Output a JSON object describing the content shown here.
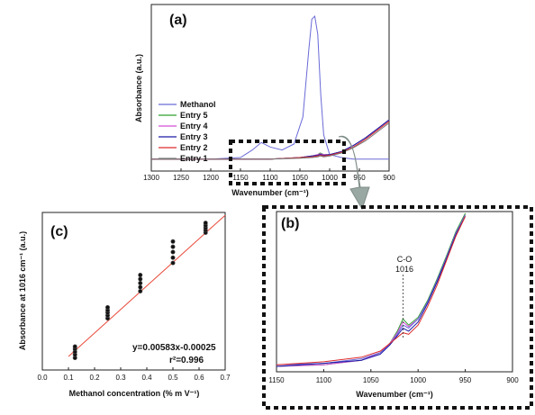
{
  "panels": {
    "a": {
      "label": "(a)",
      "ylabel": "Absorbance (a.u.)",
      "xlabel": "Wavenumber (cm⁻¹)",
      "xticks": [
        "1300",
        "1250",
        "1200",
        "1150",
        "1100",
        "1050",
        "1000",
        "950",
        "900"
      ],
      "legend": [
        "Methanol",
        "Entry 5",
        "Entry 4",
        "Entry 3",
        "Entry 2",
        "Entry 1"
      ]
    },
    "b": {
      "label": "(b)",
      "xlabel": "Wavenumber (cm⁻¹)",
      "xticks": [
        "1150",
        "1100",
        "1050",
        "1000",
        "950",
        "900"
      ],
      "annotation_line1": "C-O",
      "annotation_line2": "1016"
    },
    "c": {
      "label": "(c)",
      "ylabel": "Absorbance at 1016 cm⁻¹ (a.u.)",
      "xlabel": "Methanol concentration (% m V⁻¹)",
      "xticks": [
        "0.0",
        "0.1",
        "0.2",
        "0.3",
        "0.4",
        "0.5",
        "0.6",
        "0.7"
      ],
      "equation": "y=0.00583x-0.00025",
      "r2": "r²=0.996"
    }
  },
  "colors": {
    "methanol": "#6a6ad8",
    "entry5": "#2fa02f",
    "entry4": "#d34fd3",
    "entry3": "#1a1aa8",
    "entry2": "#dd2a2a",
    "entry1": "#777777",
    "fit": "#e84a3a",
    "arrow": "#9aa8a4"
  },
  "chart_data": [
    {
      "type": "line",
      "panel": "a",
      "xlabel": "Wavenumber (cm⁻¹)",
      "ylabel": "Absorbance (a.u.)",
      "xlim": [
        1300,
        900
      ],
      "series": [
        {
          "name": "Methanol",
          "x": [
            1300,
            1200,
            1150,
            1130,
            1115,
            1100,
            1080,
            1060,
            1045,
            1035,
            1030,
            1025,
            1020,
            1015,
            1010,
            1000,
            980,
            960,
            940,
            920,
            900
          ],
          "y": [
            0.02,
            0.02,
            0.03,
            0.08,
            0.13,
            0.1,
            0.08,
            0.12,
            0.3,
            0.75,
            0.95,
            0.97,
            0.85,
            0.45,
            0.18,
            0.05,
            0.03,
            0.02,
            0.02,
            0.02,
            0.02
          ]
        },
        {
          "name": "Entry 5",
          "x": [
            1300,
            1100,
            1050,
            1030,
            1020,
            1016,
            1010,
            1000,
            980,
            960,
            940,
            920,
            900
          ],
          "y": [
            0.02,
            0.02,
            0.03,
            0.04,
            0.05,
            0.06,
            0.05,
            0.05,
            0.07,
            0.11,
            0.16,
            0.22,
            0.28
          ]
        },
        {
          "name": "Entry 4",
          "x": [
            1300,
            1100,
            1050,
            1030,
            1020,
            1016,
            1010,
            1000,
            980,
            960,
            940,
            920,
            900
          ],
          "y": [
            0.02,
            0.02,
            0.03,
            0.04,
            0.05,
            0.055,
            0.05,
            0.05,
            0.07,
            0.11,
            0.16,
            0.22,
            0.28
          ]
        },
        {
          "name": "Entry 3",
          "x": [
            1300,
            1100,
            1050,
            1030,
            1020,
            1016,
            1010,
            1000,
            980,
            960,
            940,
            920,
            900
          ],
          "y": [
            0.02,
            0.02,
            0.03,
            0.04,
            0.045,
            0.05,
            0.045,
            0.05,
            0.07,
            0.11,
            0.16,
            0.22,
            0.28
          ]
        },
        {
          "name": "Entry 2",
          "x": [
            1300,
            1100,
            1050,
            1030,
            1020,
            1016,
            1010,
            1000,
            980,
            960,
            940,
            920,
            900
          ],
          "y": [
            0.02,
            0.02,
            0.03,
            0.035,
            0.04,
            0.045,
            0.04,
            0.045,
            0.065,
            0.1,
            0.15,
            0.21,
            0.27
          ]
        },
        {
          "name": "Entry 1",
          "x": [
            1300,
            1100,
            1050,
            1030,
            1020,
            1016,
            1010,
            1000,
            980,
            960,
            940,
            920,
            900
          ],
          "y": [
            0.02,
            0.02,
            0.025,
            0.03,
            0.035,
            0.04,
            0.035,
            0.04,
            0.06,
            0.095,
            0.14,
            0.2,
            0.26
          ]
        }
      ]
    },
    {
      "type": "line",
      "panel": "b",
      "xlabel": "Wavenumber (cm⁻¹)",
      "xlim": [
        1150,
        900
      ],
      "annotation": {
        "text": [
          "C-O",
          "1016"
        ],
        "x": 1016
      },
      "series": [
        {
          "x": [
            1150,
            1100,
            1060,
            1040,
            1030,
            1022,
            1016,
            1010,
            1000,
            990,
            980,
            970,
            960,
            950
          ],
          "y": [
            0.0,
            0.01,
            0.04,
            0.09,
            0.15,
            0.23,
            0.31,
            0.27,
            0.32,
            0.43,
            0.57,
            0.72,
            0.88,
            1.0
          ]
        },
        {
          "x": [
            1150,
            1100,
            1060,
            1040,
            1030,
            1022,
            1016,
            1010,
            1000,
            990,
            980,
            970,
            960,
            950
          ],
          "y": [
            0.0,
            0.01,
            0.04,
            0.09,
            0.15,
            0.22,
            0.29,
            0.26,
            0.31,
            0.42,
            0.56,
            0.71,
            0.87,
            0.99
          ]
        },
        {
          "x": [
            1150,
            1100,
            1060,
            1040,
            1030,
            1022,
            1016,
            1010,
            1000,
            990,
            980,
            970,
            960,
            950
          ],
          "y": [
            0.01,
            0.02,
            0.05,
            0.09,
            0.14,
            0.21,
            0.27,
            0.25,
            0.31,
            0.42,
            0.56,
            0.71,
            0.87,
            0.99
          ]
        },
        {
          "x": [
            1150,
            1100,
            1060,
            1040,
            1030,
            1022,
            1016,
            1010,
            1000,
            990,
            980,
            970,
            960,
            950
          ],
          "y": [
            0.0,
            0.02,
            0.04,
            0.08,
            0.14,
            0.2,
            0.25,
            0.23,
            0.29,
            0.41,
            0.55,
            0.7,
            0.86,
            0.98
          ]
        },
        {
          "x": [
            1150,
            1100,
            1060,
            1040,
            1030,
            1022,
            1016,
            1010,
            1000,
            990,
            980,
            970,
            960,
            950
          ],
          "y": [
            0.01,
            0.03,
            0.06,
            0.1,
            0.15,
            0.19,
            0.22,
            0.21,
            0.27,
            0.39,
            0.53,
            0.69,
            0.85,
            0.98
          ]
        }
      ]
    },
    {
      "type": "scatter",
      "panel": "c",
      "xlabel": "Methanol concentration (% m V⁻¹)",
      "ylabel": "Absorbance at 1016 cm⁻¹ (a.u.)",
      "xlim": [
        0.0,
        0.7
      ],
      "points": [
        {
          "x": 0.125,
          "y": [
            0.3,
            0.38,
            0.45,
            0.52,
            0.58
          ]
        },
        {
          "x": 0.25,
          "y": [
            1.28,
            1.35,
            1.42,
            1.48,
            1.55
          ]
        },
        {
          "x": 0.375,
          "y": [
            1.95,
            2.05,
            2.15,
            2.25,
            2.35
          ]
        },
        {
          "x": 0.5,
          "y": [
            2.65,
            2.78,
            2.92,
            3.05,
            3.18
          ]
        },
        {
          "x": 0.625,
          "y": [
            3.4,
            3.46,
            3.52,
            3.58,
            3.64
          ]
        }
      ],
      "fit": {
        "slope": 5.83,
        "intercept": -0.25,
        "x_range": [
          0.1,
          0.7
        ]
      },
      "equation": "y=0.00583x-0.00025",
      "r2": "r²=0.996"
    }
  ]
}
